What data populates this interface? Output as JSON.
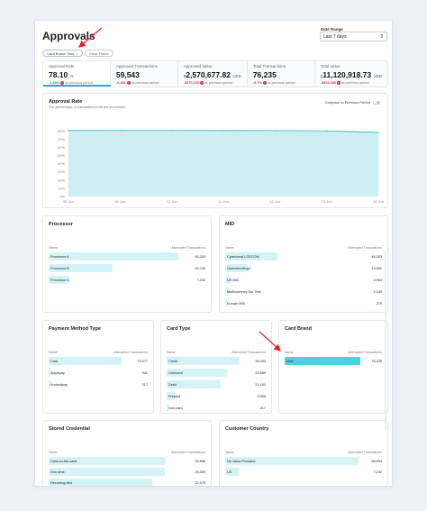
{
  "header": {
    "title": "Approvals",
    "date_range_label": "Date Range",
    "date_range_value": "Last 7 days",
    "filter_pill_label": "Card Brand: Visa",
    "clear_filters_label": "Clear Filters"
  },
  "kpis": [
    {
      "label": "Approval Rate",
      "value": "78.10",
      "unit": "%",
      "delta": "-1.48%",
      "delta_text": "vs previous period",
      "direction": "up"
    },
    {
      "label": "Approved Transactions",
      "value": "59,543",
      "unit": "",
      "delta": "-0,438",
      "delta_text": "vs previous period",
      "direction": "down"
    },
    {
      "label": "Approved Value",
      "value": "2,570,677.82",
      "unit": "USD",
      "prefix": "$",
      "delta": "-$570,153",
      "delta_text": "vs previous period",
      "direction": "down"
    },
    {
      "label": "Total Transactions",
      "value": "76,235",
      "unit": "",
      "delta": "-6.7%",
      "delta_text": "vs previous period",
      "direction": "down"
    },
    {
      "label": "Total Value",
      "value": "11,120,918.73",
      "unit": "USD",
      "prefix": "$",
      "delta": "-$821,488",
      "delta_text": "vs previous period",
      "direction": "down"
    }
  ],
  "approval_chart": {
    "title": "Approval Rate",
    "subtitle": "The percentage of transactions that are successful.",
    "compare_label": "Compare to Previous Period",
    "color": "#26b5c7",
    "fill": "#cdeff4"
  },
  "chart_data": {
    "type": "area",
    "x": [
      "08 Jun",
      "09 Jun",
      "10 Jun",
      "11 Jun",
      "12 Jun",
      "13 Jun",
      "14 Jun"
    ],
    "values": [
      80.5,
      80.6,
      80.6,
      80.5,
      80.4,
      80.0,
      78.1
    ],
    "y_ticks": [
      "0%",
      "10%",
      "20%",
      "30%",
      "40%",
      "50%",
      "60%",
      "70%",
      "80%"
    ],
    "ylim": [
      0,
      88
    ],
    "grid": true
  },
  "processor": {
    "title": "Processor",
    "col_name": "Name",
    "col_value": "Attempted Transactions",
    "rows": [
      {
        "name": "Processor A",
        "value": "46,263",
        "n": 46263
      },
      {
        "name": "Processor B",
        "value": "22,740",
        "n": 22740
      },
      {
        "name": "Processor C",
        "value": "7,242",
        "n": 7242
      }
    ]
  },
  "mid": {
    "title": "MID",
    "col_name": "Name",
    "col_value": "Attempted Transactions",
    "rows": [
      {
        "name": "CyrenomsLLCECOM",
        "value": "46,263",
        "n": 46263
      },
      {
        "name": "Opeconsulting2",
        "value": "19,591",
        "n": 19591
      },
      {
        "name": "US MID",
        "value": "4,963",
        "n": 4963
      },
      {
        "name": "Multicurrency Eur Test",
        "value": "3,149",
        "n": 3149
      },
      {
        "name": "Europe MID",
        "value": "279",
        "n": 279
      }
    ]
  },
  "payment_method": {
    "title": "Payment Method Type",
    "col_name": "Name",
    "col_value": "Attempted Transactions",
    "rows": [
      {
        "name": "Card",
        "value": "75,077",
        "n": 75077
      },
      {
        "name": "Applepay",
        "value": "941",
        "n": 941
      },
      {
        "name": "Androidpay",
        "value": "217",
        "n": 217
      }
    ]
  },
  "card_type": {
    "title": "Card Type",
    "col_name": "Name",
    "col_value": "Attempted Transactions",
    "rows": [
      {
        "name": "Credit",
        "value": "28,333",
        "n": 28333
      },
      {
        "name": "Unknown",
        "value": "23,589",
        "n": 23589
      },
      {
        "name": "Debit",
        "value": "21,101",
        "n": 21101
      },
      {
        "name": "Prepaid",
        "value": "2,996",
        "n": 2996
      },
      {
        "name": "Non-card",
        "value": "217",
        "n": 217
      }
    ]
  },
  "card_brand": {
    "title": "Card Brand",
    "col_name": "Name",
    "col_value": "Attempted Transactions",
    "rows": [
      {
        "name": "Visa",
        "value": "76,235",
        "n": 76235,
        "selected": true
      }
    ]
  },
  "stored_credential": {
    "title": "Stored Credential",
    "col_name": "Name",
    "col_value": "Attempted Transactions",
    "rows": [
      {
        "name": "Card-on-file-vault",
        "value": "25,556",
        "n": 25556
      },
      {
        "name": "One-time",
        "value": "25,355",
        "n": 25355
      },
      {
        "name": "Recurring-first",
        "value": "22,579",
        "n": 22579
      }
    ]
  },
  "customer_country": {
    "title": "Customer Country",
    "col_name": "Name",
    "col_value": "Attempted Transactions",
    "rows": [
      {
        "name": "No Value Provided",
        "value": "68,993",
        "n": 68993
      },
      {
        "name": "US",
        "value": "7,242",
        "n": 7242
      }
    ]
  },
  "annotation_color": "#e0242a"
}
